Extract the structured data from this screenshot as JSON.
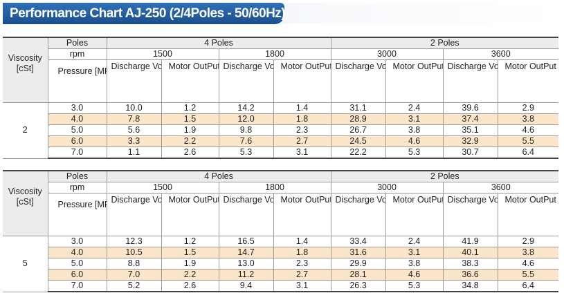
{
  "title": "Performance Chart AJ-250 (2/4Poles - 50/60Hz)",
  "headers": {
    "viscosity": "Viscosity [cSt]",
    "poles": "Poles",
    "rpm": "rpm",
    "pressure": "Pressure [MPa]",
    "poles_4": "4 Poles",
    "poles_2": "2 Poles",
    "rpm_values": [
      "1500",
      "1800",
      "3000",
      "3600"
    ],
    "discharge": "Discharge Volume [?/min]",
    "motor": "Motor OutPut [kW]"
  },
  "tables": [
    {
      "viscosity": "2",
      "rows": [
        {
          "pressure": "3.0",
          "v": [
            "10.0",
            "1.2",
            "14.2",
            "1.4",
            "31.1",
            "2.4",
            "39.6",
            "2.9"
          ]
        },
        {
          "pressure": "4.0",
          "v": [
            "7.8",
            "1.5",
            "12.0",
            "1.8",
            "28.9",
            "3.1",
            "37.4",
            "3.8"
          ]
        },
        {
          "pressure": "5.0",
          "v": [
            "5.6",
            "1.9",
            "9.8",
            "2.3",
            "26.7",
            "3.8",
            "35.1",
            "4.6"
          ]
        },
        {
          "pressure": "6.0",
          "v": [
            "3.3",
            "2.2",
            "7.6",
            "2.7",
            "24.5",
            "4.6",
            "32.9",
            "5.5"
          ]
        },
        {
          "pressure": "7.0",
          "v": [
            "1.1",
            "2.6",
            "5.3",
            "3.1",
            "22.2",
            "5.3",
            "30.7",
            "6.4"
          ]
        }
      ]
    },
    {
      "viscosity": "5",
      "rows": [
        {
          "pressure": "3.0",
          "v": [
            "12.3",
            "1.2",
            "16.5",
            "1.4",
            "33.4",
            "2.4",
            "41.9",
            "2.9"
          ]
        },
        {
          "pressure": "4.0",
          "v": [
            "10.5",
            "1.5",
            "14.7",
            "1.8",
            "31.6",
            "3.1",
            "40.1",
            "3.8"
          ]
        },
        {
          "pressure": "5.0",
          "v": [
            "8.8",
            "1.9",
            "13.0",
            "2.3",
            "29.9",
            "3.8",
            "38.3",
            "4.6"
          ]
        },
        {
          "pressure": "6.0",
          "v": [
            "7.0",
            "2.2",
            "11.2",
            "2.7",
            "28.1",
            "4.6",
            "36.6",
            "5.5"
          ]
        },
        {
          "pressure": "7.0",
          "v": [
            "5.2",
            "2.6",
            "9.4",
            "3.1",
            "26.3",
            "5.3",
            "34.8",
            "6.4"
          ]
        }
      ]
    }
  ]
}
